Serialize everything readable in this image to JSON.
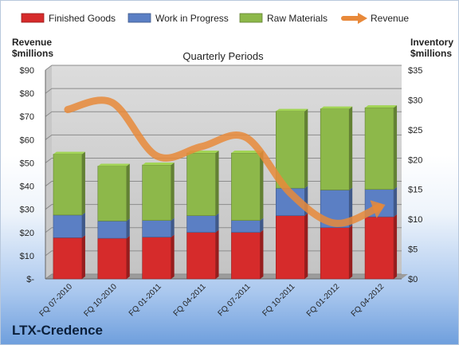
{
  "company": "LTX-Credence",
  "chart_data": {
    "type": "bar",
    "stacked": true,
    "title": "Quarterly Periods",
    "left_axis_title": [
      "Revenue",
      "$millions"
    ],
    "right_axis_title": [
      "Inventory",
      "$millions"
    ],
    "categories": [
      "FQ 07-2010",
      "FQ 10-2010",
      "FQ 01-2011",
      "FQ 04-2011",
      "FQ 07-2011",
      "FQ 10-2011",
      "FQ 01-2012",
      "FQ 04-2012"
    ],
    "left_ticks": [
      "$-",
      "$10",
      "$20",
      "$30",
      "$40",
      "$50",
      "$60",
      "$70",
      "$80",
      "$90"
    ],
    "right_ticks": [
      "$0",
      "$5",
      "$10",
      "$15",
      "$20",
      "$25",
      "$30",
      "$35"
    ],
    "left_ylim": [
      0,
      90
    ],
    "right_ylim": [
      0,
      35
    ],
    "grid": true,
    "legend_position": "top",
    "series": [
      {
        "name": "Finished Goods",
        "axis": "right",
        "color": "#d62b2b",
        "values": [
          6.9,
          6.8,
          7.0,
          7.8,
          7.8,
          10.6,
          8.6,
          10.4
        ]
      },
      {
        "name": "Work in Progress",
        "axis": "right",
        "color": "#5b7fc4",
        "values": [
          3.8,
          2.9,
          2.8,
          2.8,
          2.0,
          4.6,
          6.3,
          4.6
        ]
      },
      {
        "name": "Raw Materials",
        "axis": "right",
        "color": "#8db84a",
        "values": [
          10.2,
          9.2,
          9.3,
          10.5,
          11.3,
          12.9,
          13.6,
          13.7
        ]
      }
    ],
    "line_series": {
      "name": "Revenue",
      "axis": "left",
      "color": "#e8893a",
      "values": [
        73,
        76,
        53,
        57,
        61,
        37,
        24,
        31
      ]
    }
  }
}
